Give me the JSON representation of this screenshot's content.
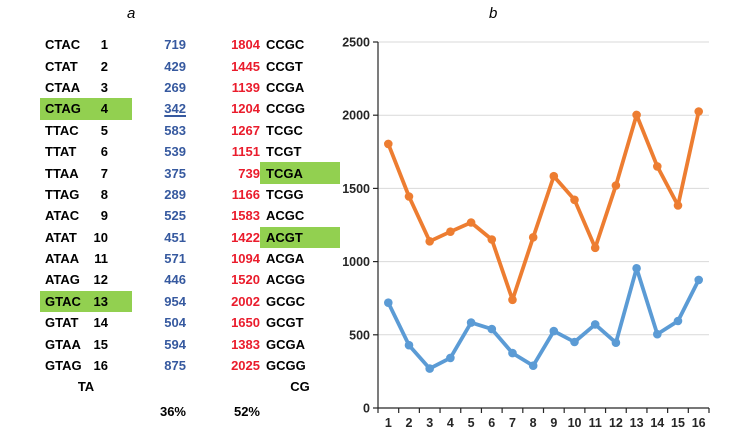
{
  "figure": {
    "panel_a": {
      "title": "a",
      "rows": [
        {
          "seq": "CTAC",
          "idx": "1",
          "ta": "719",
          "cg": "1804",
          "cg_seq": "CCGC"
        },
        {
          "seq": "CTAT",
          "idx": "2",
          "ta": "429",
          "cg": "1445",
          "cg_seq": "CCGT"
        },
        {
          "seq": "CTAA",
          "idx": "3",
          "ta": "269",
          "cg": "1139",
          "cg_seq": "CCGA"
        },
        {
          "seq": "CTAG",
          "idx": "4",
          "ta": "342",
          "cg": "1204",
          "cg_seq": "CCGG",
          "hl_ta": true,
          "ta_underline": true
        },
        {
          "seq": "TTAC",
          "idx": "5",
          "ta": "583",
          "cg": "1267",
          "cg_seq": "TCGC"
        },
        {
          "seq": "TTAT",
          "idx": "6",
          "ta": "539",
          "cg": "1151",
          "cg_seq": "TCGT"
        },
        {
          "seq": "TTAA",
          "idx": "7",
          "ta": "375",
          "cg": "739",
          "cg_seq": "TCGA",
          "hl_cg": true
        },
        {
          "seq": "TTAG",
          "idx": "8",
          "ta": "289",
          "cg": "1166",
          "cg_seq": "TCGG"
        },
        {
          "seq": "ATAC",
          "idx": "9",
          "ta": "525",
          "cg": "1583",
          "cg_seq": "ACGC"
        },
        {
          "seq": "ATAT",
          "idx": "10",
          "ta": "451",
          "cg": "1422",
          "cg_seq": "ACGT",
          "hl_cg": true
        },
        {
          "seq": "ATAA",
          "idx": "11",
          "ta": "571",
          "cg": "1094",
          "cg_seq": "ACGA"
        },
        {
          "seq": "ATAG",
          "idx": "12",
          "ta": "446",
          "cg": "1520",
          "cg_seq": "ACGG"
        },
        {
          "seq": "GTAC",
          "idx": "13",
          "ta": "954",
          "cg": "2002",
          "cg_seq": "GCGC",
          "hl_ta": true
        },
        {
          "seq": "GTAT",
          "idx": "14",
          "ta": "504",
          "cg": "1650",
          "cg_seq": "GCGT"
        },
        {
          "seq": "GTAA",
          "idx": "15",
          "ta": "594",
          "cg": "1383",
          "cg_seq": "GCGA"
        },
        {
          "seq": "GTAG",
          "idx": "16",
          "ta": "875",
          "cg": "2025",
          "cg_seq": "GCGG"
        }
      ],
      "footer": {
        "ta_group": "TA",
        "cg_group": "CG",
        "ta_pct": "36%",
        "cg_pct": "52%"
      },
      "colors": {
        "highlight": "#92d050",
        "ta_text": "#36599f",
        "cg_text": "#ea1c2c"
      }
    },
    "panel_b": {
      "title": "b"
    }
  },
  "chart_data": {
    "type": "line",
    "title": "b",
    "x": [
      1,
      2,
      3,
      4,
      5,
      6,
      7,
      8,
      9,
      10,
      11,
      12,
      13,
      14,
      15,
      16
    ],
    "series": [
      {
        "name": "CG",
        "color": "#ed7d31",
        "values": [
          1804,
          1445,
          1139,
          1204,
          1267,
          1151,
          739,
          1166,
          1583,
          1422,
          1094,
          1520,
          2002,
          1650,
          1383,
          2025
        ]
      },
      {
        "name": "TA",
        "color": "#5b9bd5",
        "values": [
          719,
          429,
          269,
          342,
          583,
          539,
          375,
          289,
          525,
          451,
          571,
          446,
          954,
          504,
          594,
          875
        ]
      }
    ],
    "xlabel": "",
    "ylabel": "",
    "ylim": [
      0,
      2500
    ],
    "yticks": [
      0,
      500,
      1000,
      1500,
      2000,
      2500
    ],
    "grid": true,
    "legend": false,
    "colors": {
      "grid": "#d9d9d9",
      "axis": "#262626"
    }
  }
}
